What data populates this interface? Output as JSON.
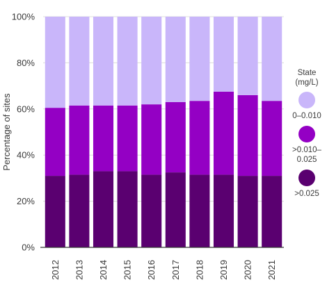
{
  "chart_data": {
    "type": "bar",
    "stacked": true,
    "percent": true,
    "title": "",
    "xlabel": "",
    "ylabel": "Percentage of sites",
    "ylim": [
      0,
      100
    ],
    "y_ticks": [
      "0%",
      "20%",
      "40%",
      "60%",
      "80%",
      "100%"
    ],
    "categories": [
      "2012",
      "2013",
      "2014",
      "2015",
      "2016",
      "2017",
      "2018",
      "2019",
      "2020",
      "2021"
    ],
    "series": [
      {
        "name": ">0.025",
        "color": "#5a0070",
        "values": [
          31,
          31.5,
          33,
          33,
          31.5,
          32.5,
          31.5,
          31.5,
          31,
          31
        ]
      },
      {
        "name": ">0.010–0.025",
        "color": "#9400c4",
        "values": [
          29.5,
          30,
          28.5,
          28.5,
          30.5,
          30.5,
          32,
          36,
          35,
          32.5
        ]
      },
      {
        "name": "0–0.010",
        "color": "#c9b6fa",
        "values": [
          39.5,
          38.5,
          38.5,
          38.5,
          38,
          37,
          36.5,
          32.5,
          34,
          36.5
        ]
      }
    ],
    "legend": {
      "title_line1": "State",
      "title_line2": "(mg/L)",
      "placement": "right",
      "items": [
        {
          "lines": [
            "0–0.010"
          ],
          "color": "#c9b6fa"
        },
        {
          "lines": [
            ">0.010–",
            "0.025"
          ],
          "color": "#9400c4"
        },
        {
          "lines": [
            ">0.025"
          ],
          "color": "#5a0070"
        }
      ]
    },
    "grid": true
  }
}
